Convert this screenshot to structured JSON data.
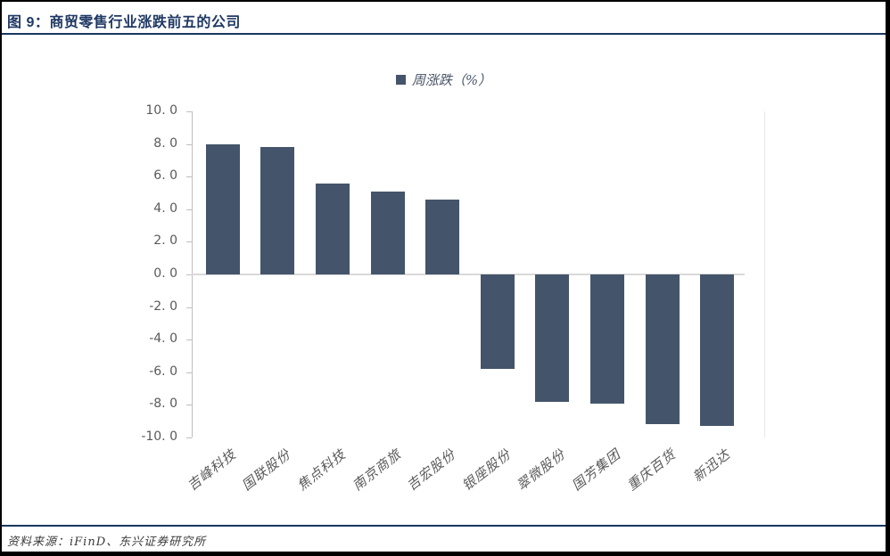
{
  "figure": {
    "title": "图 9：商贸零售行业涨跌前五的公司",
    "source": "资料来源：iFinD、东兴证券研究所"
  },
  "legend": {
    "swatch_color": "#44546A",
    "label": "周涨跌（%）"
  },
  "chart_data": {
    "type": "bar",
    "title": "",
    "legend": [
      "周涨跌（%）"
    ],
    "legend_position": "top-center",
    "categories": [
      "吉峰科技",
      "国联股份",
      "焦点科技",
      "南京商旅",
      "吉宏股份",
      "银座股份",
      "翠微股份",
      "国芳集团",
      "重庆百货",
      "新迅达"
    ],
    "values": [
      8.0,
      7.8,
      5.6,
      5.1,
      4.6,
      -5.8,
      -7.8,
      -7.9,
      -9.2,
      -9.3
    ],
    "xlabel": "",
    "ylabel": "",
    "ylim": [
      -10.0,
      10.0
    ],
    "ytick_step": 2.0,
    "ytick_labels": [
      "10. 0",
      "8. 0",
      "6. 0",
      "4. 0",
      "2. 0",
      "0. 0",
      "-2. 0",
      "-4. 0",
      "-6. 0",
      "-8. 0",
      "-10. 0"
    ],
    "grid": false,
    "bar_color": "#44546A"
  },
  "colors": {
    "title": "#1F3864",
    "rule": "#17375E",
    "axis": "#BFBFBF",
    "zero_line": "#D9D9D9",
    "tick_label": "#595959",
    "frame": "#000000"
  }
}
